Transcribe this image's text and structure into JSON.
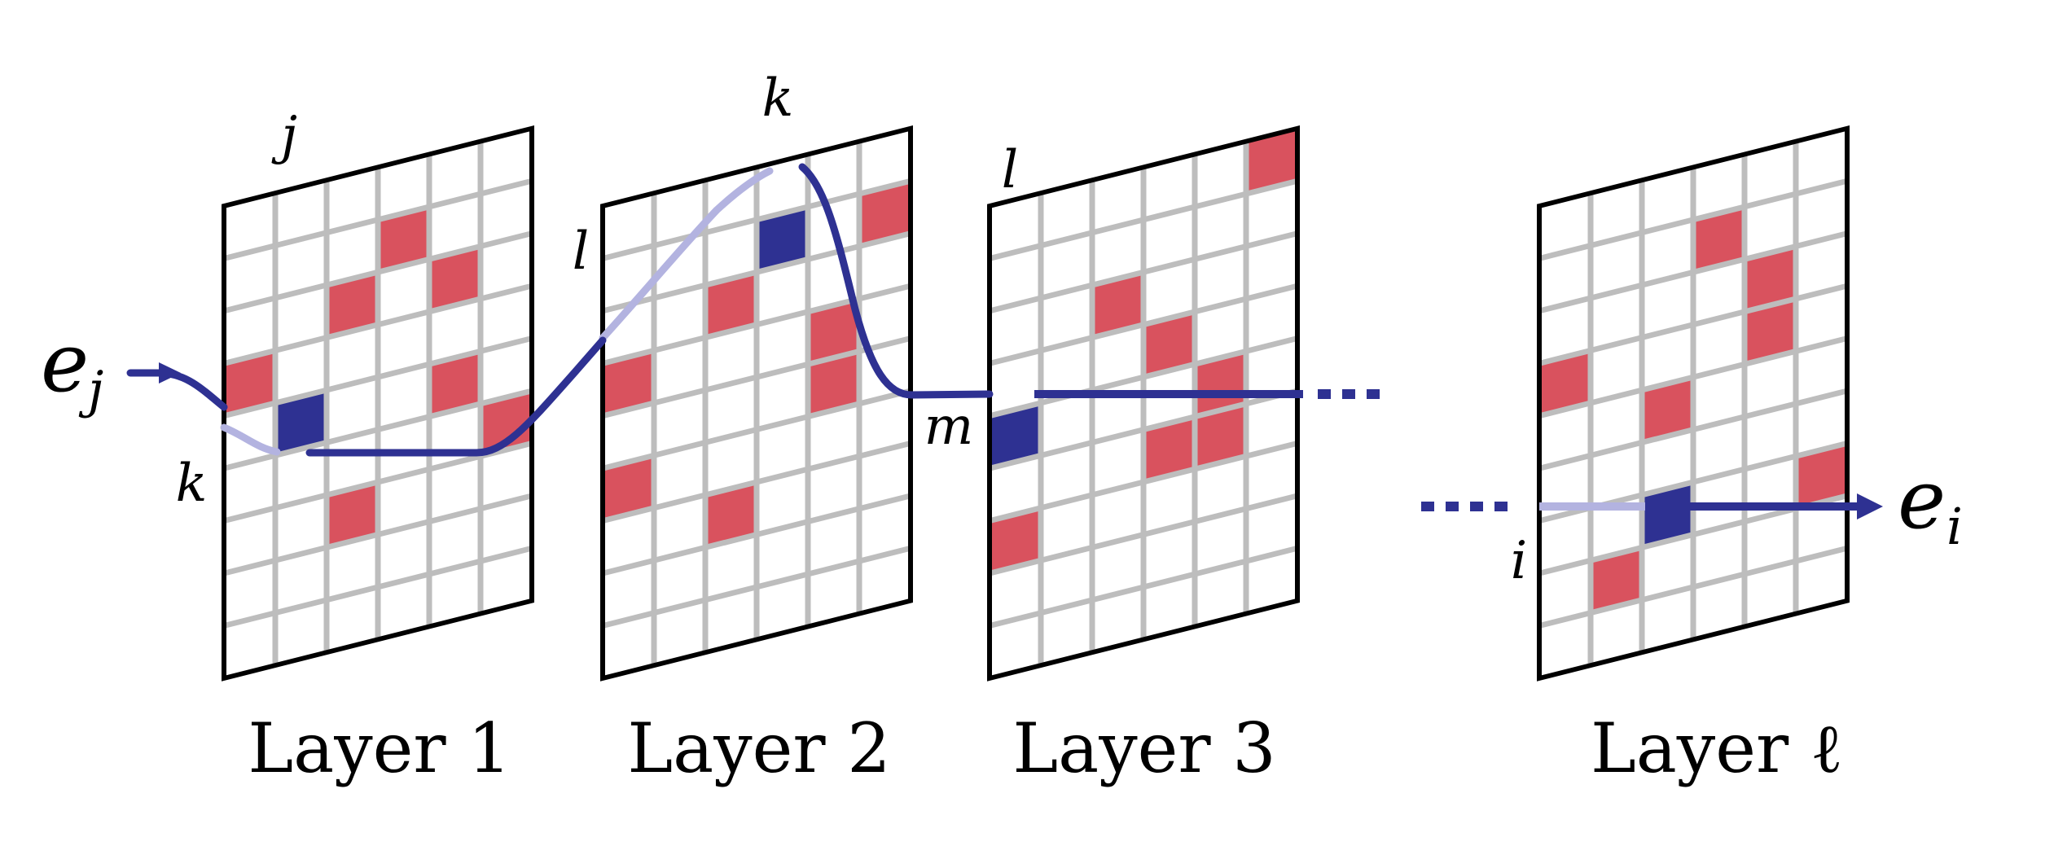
{
  "colors": {
    "red_cell": "#d9525e",
    "active_cell": "#2e3192",
    "path_dark": "#2e3192",
    "path_light": "#b3b3e0",
    "grid": "#bdbdbd",
    "frame": "#000000"
  },
  "input_vector": {
    "base": "e",
    "sub": "j"
  },
  "output_vector": {
    "base": "e",
    "sub": "i"
  },
  "layers": [
    {
      "label": "Layer 1",
      "index_labels": [
        "j",
        "k"
      ],
      "red_cells": [
        [
          3,
          1
        ],
        [
          2,
          2
        ],
        [
          4,
          2
        ],
        [
          0,
          3
        ],
        [
          4,
          4
        ],
        [
          5,
          5
        ],
        [
          2,
          6
        ]
      ],
      "active_cell": [
        1,
        4
      ]
    },
    {
      "label": "Layer 2",
      "index_labels": [
        "k",
        "l"
      ],
      "red_cells": [
        [
          5,
          1
        ],
        [
          2,
          2
        ],
        [
          0,
          3
        ],
        [
          4,
          3
        ],
        [
          4,
          4
        ],
        [
          0,
          5
        ],
        [
          2,
          6
        ]
      ],
      "active_cell": [
        3,
        1
      ]
    },
    {
      "label": "Layer 3",
      "index_labels": [
        "l",
        "m"
      ],
      "red_cells": [
        [
          5,
          0
        ],
        [
          2,
          2
        ],
        [
          3,
          3
        ],
        [
          4,
          4
        ],
        [
          3,
          5
        ],
        [
          4,
          5
        ],
        [
          0,
          6
        ]
      ],
      "active_cell": [
        0,
        4
      ]
    },
    {
      "label": "Layer ℓ",
      "index_labels": [
        "i"
      ],
      "red_cells": [
        [
          3,
          1
        ],
        [
          4,
          2
        ],
        [
          0,
          3
        ],
        [
          4,
          3
        ],
        [
          2,
          4
        ],
        [
          5,
          6
        ],
        [
          1,
          7
        ]
      ],
      "active_cell": [
        2,
        6
      ]
    }
  ]
}
